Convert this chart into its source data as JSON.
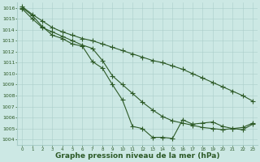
{
  "xlabel": "Graphe pression niveau de la mer (hPa)",
  "x_ticks": [
    0,
    1,
    2,
    3,
    4,
    5,
    6,
    7,
    8,
    9,
    10,
    11,
    12,
    13,
    14,
    15,
    16,
    17,
    18,
    19,
    20,
    21,
    22,
    23
  ],
  "ylim": [
    1003.5,
    1016.5
  ],
  "xlim": [
    -0.5,
    23.5
  ],
  "yticks": [
    1004,
    1005,
    1006,
    1007,
    1008,
    1009,
    1010,
    1011,
    1012,
    1013,
    1014,
    1015,
    1016
  ],
  "line1": [
    1016.0,
    1015.3,
    1014.3,
    1013.5,
    1013.2,
    1012.7,
    1012.5,
    1011.1,
    1010.5,
    1009.0,
    1007.6,
    1005.2,
    1005.0,
    1004.2,
    1004.2,
    1004.1,
    1005.8,
    1005.4,
    1005.5,
    1005.6,
    1005.2,
    1005.0,
    1004.9,
    1005.4
  ],
  "line2": [
    1015.9,
    1015.0,
    1014.2,
    1013.8,
    1013.4,
    1013.0,
    1012.6,
    1012.3,
    1011.2,
    1009.8,
    1009.0,
    1008.2,
    1007.4,
    1006.7,
    1006.1,
    1005.7,
    1005.5,
    1005.3,
    1005.1,
    1005.0,
    1004.9,
    1005.0,
    1005.1,
    1005.5
  ],
  "line3": [
    1016.1,
    1015.4,
    1014.8,
    1014.2,
    1013.8,
    1013.5,
    1013.2,
    1013.0,
    1012.7,
    1012.4,
    1012.1,
    1011.8,
    1011.5,
    1011.2,
    1011.0,
    1010.7,
    1010.4,
    1010.0,
    1009.6,
    1009.2,
    1008.8,
    1008.4,
    1008.0,
    1007.5
  ],
  "line_color": "#2d5a27",
  "bg_color": "#cce8e4",
  "grid_color": "#aaceca",
  "tick_color": "#2d5a27",
  "label_color": "#2d5a27",
  "marker": "+",
  "markersize": 4,
  "linewidth": 0.8,
  "tick_fontsize": 4.5,
  "xlabel_fontsize": 6.5
}
